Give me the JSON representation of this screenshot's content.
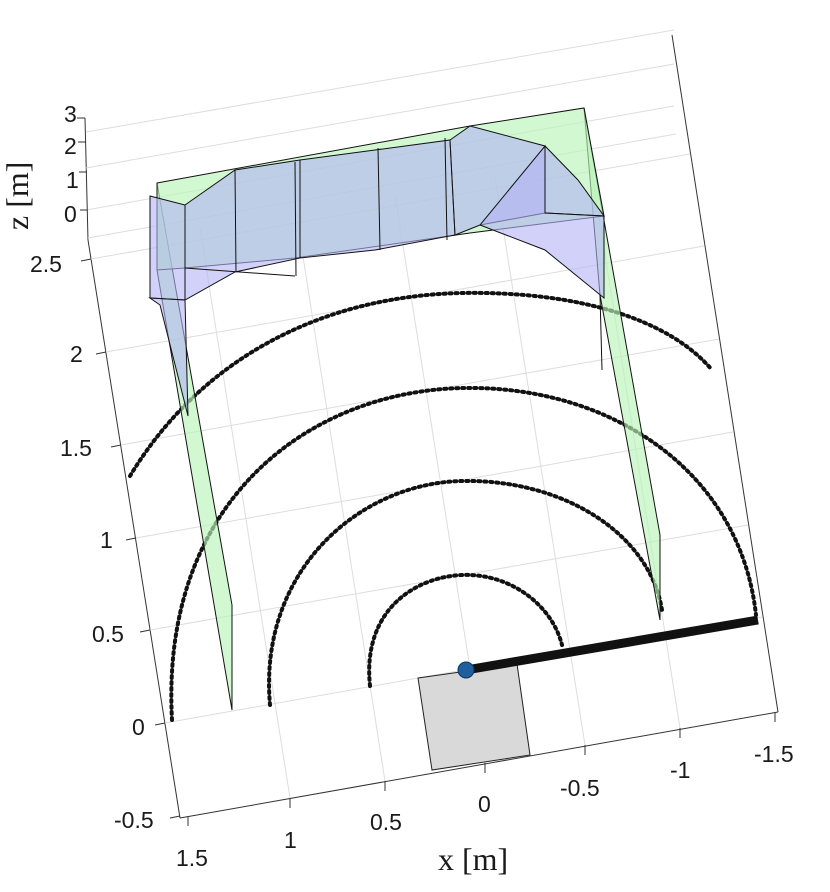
{
  "chart_data": {
    "type": "3d-scene",
    "axes": {
      "x": {
        "label": "x [m]",
        "ticks": [
          "1.5",
          "1",
          "0.5",
          "0",
          "-0.5",
          "-1",
          "-1.5"
        ],
        "range": [
          -1.5,
          1.5
        ]
      },
      "y": {
        "label": "",
        "ticks": [
          "-0.5",
          "0",
          "0.5",
          "1",
          "1.5",
          "2",
          "2.5"
        ],
        "range": [
          -0.5,
          2.5
        ]
      },
      "z": {
        "label": "z [m]",
        "ticks": [
          "0",
          "1",
          "2",
          "3"
        ],
        "range": [
          0,
          3
        ]
      }
    },
    "grid": true,
    "range_arcs_radius_m": [
      0.5,
      1.0,
      1.5,
      2.0
    ],
    "sensor_origin": [
      0,
      0.25,
      0
    ],
    "link_segment": {
      "from": [
        0,
        0.25
      ],
      "to": [
        -1.5,
        0.55
      ]
    },
    "base_block": {
      "x": [
        -0.2,
        0.2
      ],
      "y": [
        -0.5,
        0.25
      ]
    },
    "colors": {
      "surface_green": "#b9f5b9",
      "surface_blue": "#b3b3f5",
      "arc_dots": "#111111",
      "origin_marker": "#1f5f9e",
      "base_block": "#d9d9d9"
    }
  }
}
